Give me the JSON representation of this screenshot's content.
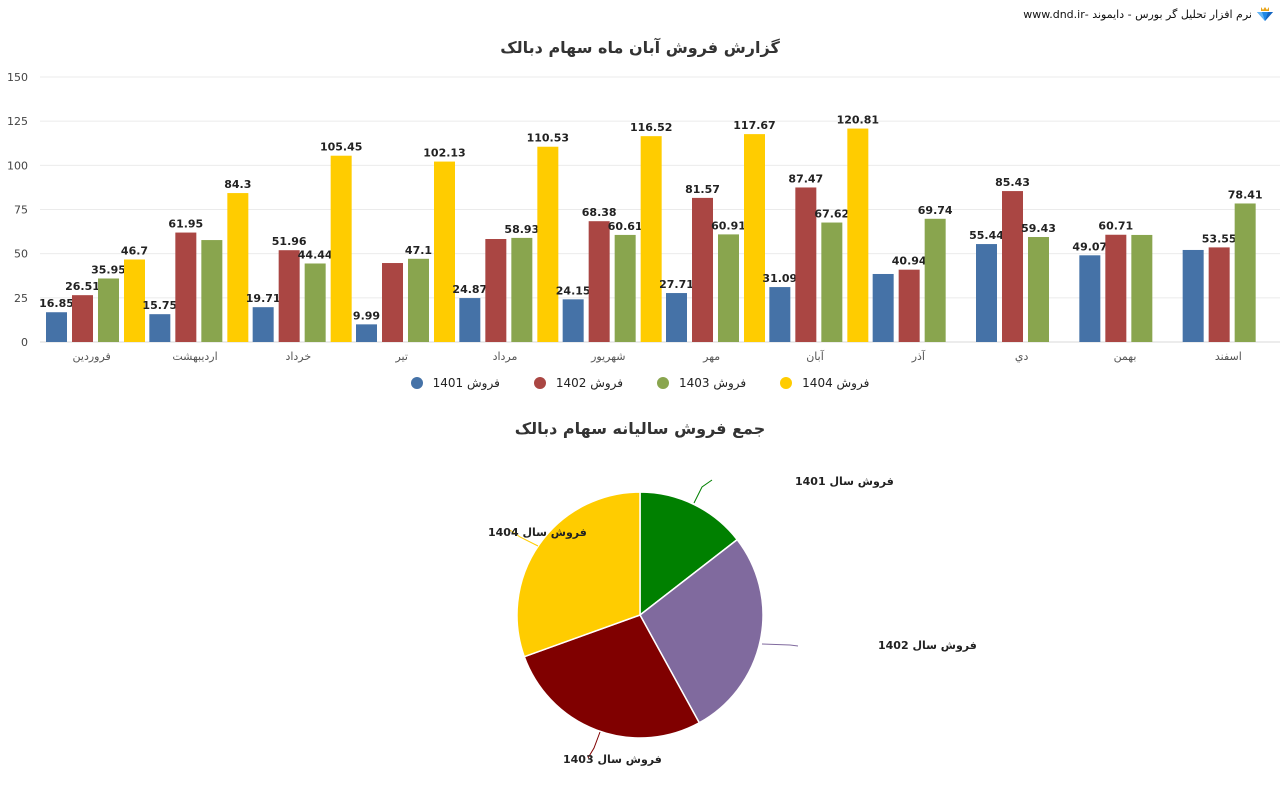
{
  "header": {
    "brand_text": "نرم افزار تحلیل گر بورس - دایموند -www.dnd.ir",
    "logo_icon": "diamond-crown-icon"
  },
  "bar_chart_title": "گزارش فروش آبان ماه سهام دبالک",
  "pie_chart_title": "جمع فروش سالیانه سهام دبالک",
  "legend": [
    {
      "label": "فروش 1401",
      "color": "#4572a7"
    },
    {
      "label": "فروش 1402",
      "color": "#aa4643"
    },
    {
      "label": "فروش 1403",
      "color": "#89a54e"
    },
    {
      "label": "فروش 1404",
      "color": "#ffcc00"
    }
  ],
  "chart_data": [
    {
      "type": "bar",
      "title": "گزارش فروش آبان ماه سهام دبالک",
      "xlabel": "",
      "ylabel": "",
      "ylim": [
        0,
        150
      ],
      "yticks": [
        0,
        25,
        50,
        75,
        100,
        125,
        150
      ],
      "grid": true,
      "legend_position": "bottom",
      "categories": [
        "فروردین",
        "اردیبهشت",
        "خرداد",
        "تیر",
        "مرداد",
        "شهریور",
        "مهر",
        "آبان",
        "آذر",
        "دي",
        "بهمن",
        "اسفند"
      ],
      "series": [
        {
          "name": "فروش 1401",
          "color": "#4572a7",
          "values": [
            16.85,
            15.75,
            19.71,
            9.99,
            24.87,
            24.15,
            27.71,
            31.09,
            38.5,
            55.44,
            49.07,
            52.1
          ],
          "labeled": [
            true,
            true,
            true,
            true,
            true,
            true,
            true,
            true,
            false,
            true,
            true,
            false
          ]
        },
        {
          "name": "فروش 1402",
          "color": "#aa4643",
          "values": [
            26.51,
            61.95,
            51.96,
            44.7,
            58.3,
            68.38,
            81.57,
            87.47,
            40.94,
            85.43,
            60.71,
            53.55
          ],
          "labeled": [
            true,
            true,
            true,
            false,
            false,
            true,
            true,
            true,
            true,
            true,
            true,
            true
          ]
        },
        {
          "name": "فروش 1403",
          "color": "#89a54e",
          "values": [
            35.95,
            57.7,
            44.44,
            47.1,
            58.93,
            60.61,
            60.91,
            67.62,
            69.74,
            59.43,
            60.6,
            78.41
          ],
          "labeled": [
            true,
            false,
            true,
            true,
            true,
            true,
            true,
            true,
            true,
            true,
            false,
            true
          ]
        },
        {
          "name": "فروش 1404",
          "color": "#ffcc00",
          "values": [
            46.7,
            84.3,
            105.45,
            102.13,
            110.53,
            116.52,
            117.67,
            120.81,
            null,
            null,
            null,
            null
          ],
          "labeled": [
            true,
            true,
            true,
            true,
            true,
            true,
            true,
            true,
            false,
            false,
            false,
            false
          ]
        }
      ]
    },
    {
      "type": "pie",
      "title": "جمع فروش سالیانه سهام دبالک",
      "slices": [
        {
          "label": "فروش سال 1401",
          "color": "#008000",
          "value": 14.5
        },
        {
          "label": "فروش سال 1402",
          "color": "#806a9e",
          "value": 27.5
        },
        {
          "label": "فروش سال 1403",
          "color": "#800000",
          "value": 27.5
        },
        {
          "label": "فروش سال 1404",
          "color": "#ffcc00",
          "value": 30.5
        }
      ],
      "units": "percent (estimated from slice angles)"
    }
  ]
}
